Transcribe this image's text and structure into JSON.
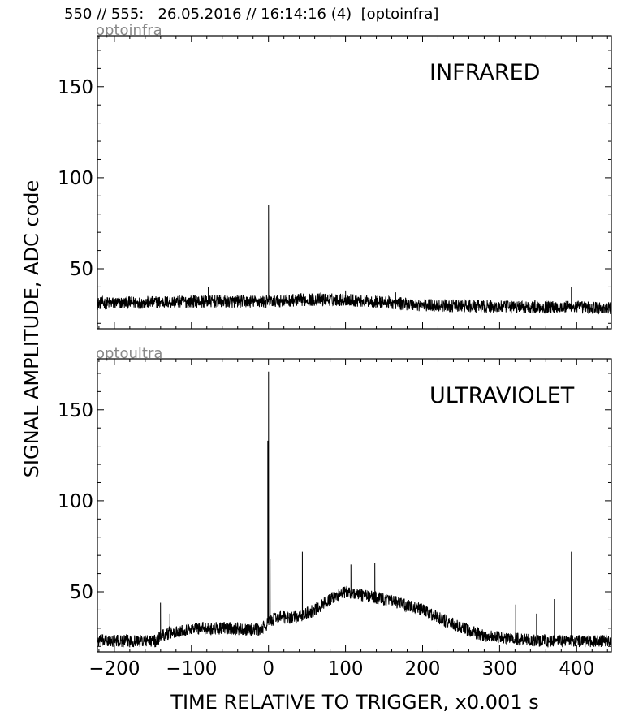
{
  "header": {
    "text": "550 // 555:   26.05.2016 // 16:14:16 (4)  [optoinfra]"
  },
  "ylabel": "SIGNAL AMPLITUDE,  ADC code",
  "xlabel": "TIME RELATIVE TO TRIGGER,   x0.001 s",
  "colors": {
    "trace": "#000000",
    "channel_label": "#888888",
    "background": "#ffffff"
  },
  "chart_data": [
    {
      "type": "line",
      "channel": "optoinfra",
      "annotation": "INFRARED",
      "xlim": [
        -222,
        445
      ],
      "ylim": [
        17,
        178
      ],
      "x_ticks": [
        -200,
        -100,
        0,
        100,
        200,
        300,
        400
      ],
      "y_ticks": [
        50,
        100,
        150
      ],
      "x_tick_labels": [
        "−200",
        "−100",
        "0",
        "100",
        "200",
        "300",
        "400"
      ],
      "y_tick_labels": [
        "50",
        "100",
        "150"
      ],
      "x_tick_labels_visible": false,
      "baseline": [
        [
          -222,
          31
        ],
        [
          -100,
          32
        ],
        [
          0,
          32
        ],
        [
          50,
          33
        ],
        [
          100,
          33
        ],
        [
          200,
          30
        ],
        [
          300,
          29
        ],
        [
          400,
          29
        ],
        [
          445,
          28
        ]
      ],
      "noise_amplitude": 3.5,
      "spikes": [
        [
          0,
          85
        ],
        [
          -78,
          40
        ],
        [
          393,
          40
        ],
        [
          100,
          38
        ],
        [
          165,
          37
        ]
      ]
    },
    {
      "type": "line",
      "channel": "optoultra",
      "annotation": "ULTRAVIOLET",
      "xlim": [
        -222,
        445
      ],
      "ylim": [
        17,
        178
      ],
      "x_ticks": [
        -200,
        -100,
        0,
        100,
        200,
        300,
        400
      ],
      "y_ticks": [
        50,
        100,
        150
      ],
      "x_tick_labels": [
        "−200",
        "−100",
        "0",
        "100",
        "200",
        "300",
        "400"
      ],
      "y_tick_labels": [
        "50",
        "100",
        "150"
      ],
      "x_tick_labels_visible": true,
      "baseline": [
        [
          -222,
          23
        ],
        [
          -145,
          23
        ],
        [
          -140,
          26
        ],
        [
          -120,
          28
        ],
        [
          -100,
          30
        ],
        [
          -50,
          30
        ],
        [
          -10,
          29
        ],
        [
          0,
          33
        ],
        [
          10,
          36
        ],
        [
          40,
          36
        ],
        [
          60,
          40
        ],
        [
          80,
          46
        ],
        [
          100,
          50
        ],
        [
          150,
          46
        ],
        [
          200,
          40
        ],
        [
          250,
          30
        ],
        [
          280,
          26
        ],
        [
          320,
          24
        ],
        [
          360,
          23
        ],
        [
          445,
          23
        ]
      ],
      "noise_amplitude": 3.5,
      "spikes": [
        [
          0,
          171
        ],
        [
          -1,
          133
        ],
        [
          2,
          68
        ],
        [
          44,
          72
        ],
        [
          -140,
          44
        ],
        [
          -128,
          38
        ],
        [
          107,
          65
        ],
        [
          138,
          66
        ],
        [
          321,
          43
        ],
        [
          348,
          38
        ],
        [
          371,
          46
        ],
        [
          393,
          72
        ]
      ]
    }
  ]
}
